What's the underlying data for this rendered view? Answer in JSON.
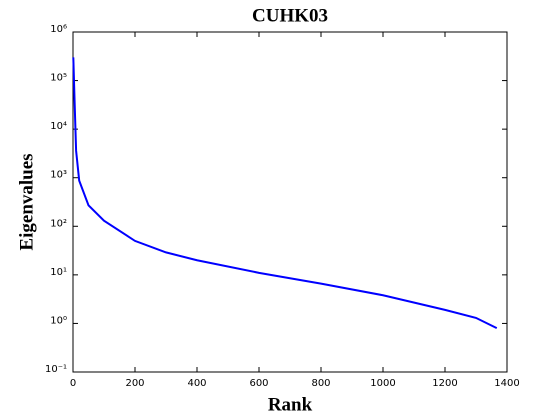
{
  "chart_data": {
    "type": "line",
    "title": "CUHK03",
    "x_label": "Rank",
    "y_label": "Eigenvalues",
    "x": [
      1,
      5,
      10,
      20,
      50,
      100,
      200,
      300,
      400,
      600,
      800,
      1000,
      1200,
      1300,
      1367
    ],
    "values": [
      300000,
      40000,
      3600,
      870,
      270,
      130,
      50,
      29,
      20,
      11,
      6.6,
      3.8,
      1.9,
      1.3,
      0.8
    ],
    "color": "#0000ff",
    "xlim": [
      0,
      1400
    ],
    "xticks": [
      0,
      200,
      400,
      600,
      800,
      1000,
      1200,
      1400
    ],
    "ylim": [
      0.1,
      1000000
    ],
    "log_y": true,
    "yticks": [
      {
        "value": 0.1,
        "label": "10⁻¹"
      },
      {
        "value": 1,
        "label": "10⁰"
      },
      {
        "value": 10,
        "label": "10¹"
      },
      {
        "value": 100,
        "label": "10²"
      },
      {
        "value": 1000,
        "label": "10³"
      },
      {
        "value": 10000,
        "label": "10⁴"
      },
      {
        "value": 100000,
        "label": "10⁵"
      },
      {
        "value": 1000000,
        "label": "10⁶"
      }
    ],
    "grid": false
  }
}
